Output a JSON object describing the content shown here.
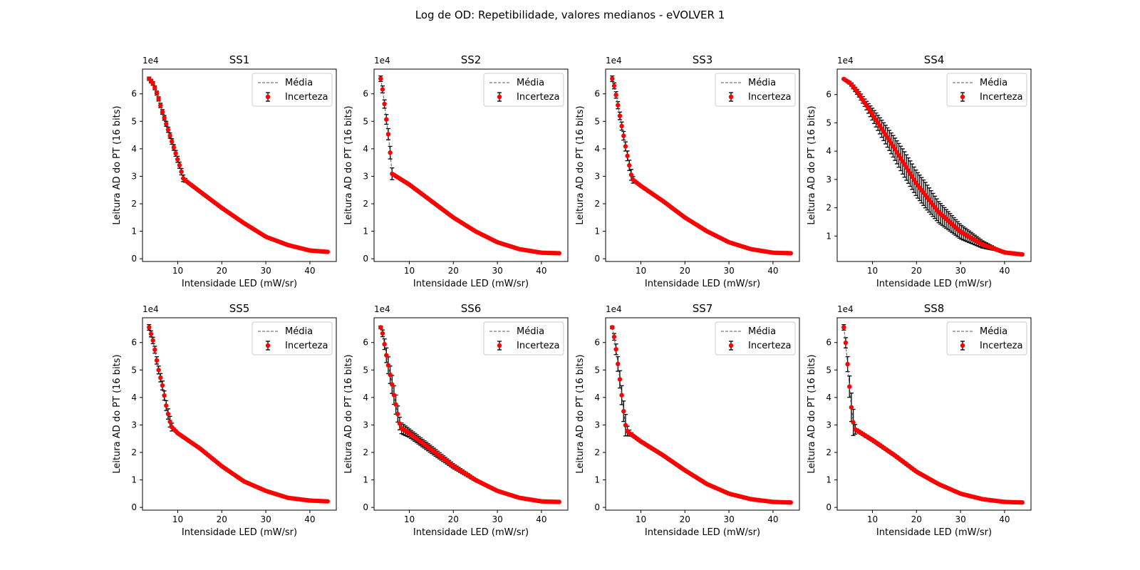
{
  "title": "Log de OD: Repetibilidade, valores medianos - eVOLVER 1",
  "chart_data": [
    {
      "type": "line",
      "title": "SS1",
      "xlabel": "Intensidade LED (mW/sr)",
      "ylabel": "Leitura AD do PT (16 bits)",
      "offset_text": "1e4",
      "xlim": [
        2,
        46
      ],
      "ylim": [
        -0.1,
        6.9
      ],
      "xticks": [
        10,
        20,
        30,
        40
      ],
      "yticks": [
        0,
        1,
        2,
        3,
        4,
        5,
        6
      ],
      "legend": {
        "position": "upper right",
        "entries": [
          "Média",
          "Incerteza"
        ]
      },
      "knots_x": [
        3.5,
        4.5,
        5.5,
        6.5,
        7.5,
        8.5,
        9.5,
        10.5,
        11.3,
        15,
        20,
        25,
        30,
        35,
        40,
        44
      ],
      "knots_y": [
        6.55,
        6.35,
        5.9,
        5.35,
        4.85,
        4.35,
        3.85,
        3.35,
        2.9,
        2.45,
        1.85,
        1.3,
        0.8,
        0.5,
        0.3,
        0.25
      ],
      "err_knots_x": [
        3.5,
        11.3,
        12,
        44
      ],
      "err_knots_y": [
        0.06,
        0.12,
        0.03,
        0.02
      ]
    },
    {
      "type": "line",
      "title": "SS2",
      "xlabel": "Intensidade LED (mW/sr)",
      "ylabel": "Leitura AD do PT (16 bits)",
      "offset_text": "1e4",
      "xlim": [
        2,
        46
      ],
      "ylim": [
        -0.1,
        6.9
      ],
      "xticks": [
        10,
        20,
        30,
        40
      ],
      "yticks": [
        0,
        1,
        2,
        3,
        4,
        5,
        6
      ],
      "legend": {
        "position": "upper right",
        "entries": [
          "Média",
          "Incerteza"
        ]
      },
      "knots_x": [
        3.5,
        4,
        4.5,
        5,
        5.5,
        6,
        8,
        10,
        15,
        20,
        25,
        30,
        35,
        40,
        44
      ],
      "knots_y": [
        6.55,
        6.1,
        5.45,
        4.8,
        4.2,
        3.1,
        2.9,
        2.7,
        2.1,
        1.5,
        1.0,
        0.6,
        0.35,
        0.22,
        0.2
      ],
      "err_knots_x": [
        3.5,
        6,
        6.5,
        44
      ],
      "err_knots_y": [
        0.1,
        0.25,
        0.03,
        0.02
      ]
    },
    {
      "type": "line",
      "title": "SS3",
      "xlabel": "Intensidade LED (mW/sr)",
      "ylabel": "Leitura AD do PT (16 bits)",
      "offset_text": "1e4",
      "xlim": [
        2,
        46
      ],
      "ylim": [
        -0.1,
        6.9
      ],
      "xticks": [
        10,
        20,
        30,
        40
      ],
      "yticks": [
        0,
        1,
        2,
        3,
        4,
        5,
        6
      ],
      "legend": {
        "position": "upper right",
        "entries": [
          "Média",
          "Incerteza"
        ]
      },
      "knots_x": [
        3.5,
        4,
        4.5,
        5,
        5.5,
        6,
        6.5,
        7,
        7.5,
        8,
        10,
        15,
        20,
        25,
        30,
        35,
        40,
        44
      ],
      "knots_y": [
        6.55,
        6.25,
        5.85,
        5.4,
        4.95,
        4.55,
        4.1,
        3.7,
        3.3,
        2.9,
        2.65,
        2.1,
        1.5,
        1.0,
        0.6,
        0.35,
        0.22,
        0.2
      ],
      "err_knots_x": [
        3.5,
        8,
        8.5,
        44
      ],
      "err_knots_y": [
        0.1,
        0.2,
        0.03,
        0.02
      ]
    },
    {
      "type": "line",
      "title": "SS4",
      "xlabel": "Intensidade LED (mW/sr)",
      "ylabel": "Leitura AD do PT (16 bits)",
      "offset_text": "1e4",
      "xlim": [
        2,
        46
      ],
      "ylim": [
        0.1,
        6.9
      ],
      "xticks": [
        10,
        20,
        30,
        40
      ],
      "yticks": [
        1,
        2,
        3,
        4,
        5,
        6
      ],
      "legend": {
        "position": "upper right",
        "entries": [
          "Média",
          "Incerteza"
        ]
      },
      "knots_x": [
        3.5,
        5,
        7,
        10,
        15,
        20,
        25,
        30,
        35,
        40,
        44
      ],
      "knots_y": [
        6.55,
        6.4,
        6.0,
        5.3,
        4.1,
        2.85,
        1.85,
        1.15,
        0.7,
        0.42,
        0.35
      ],
      "err_knots_x": [
        3.5,
        8,
        12,
        17,
        22,
        28,
        34,
        38,
        44
      ],
      "err_knots_y": [
        0.02,
        0.12,
        0.3,
        0.45,
        0.45,
        0.3,
        0.15,
        0.05,
        0.02
      ]
    },
    {
      "type": "line",
      "title": "SS5",
      "xlabel": "Intensidade LED (mW/sr)",
      "ylabel": "Leitura AD do PT (16 bits)",
      "offset_text": "1e4",
      "xlim": [
        2,
        46
      ],
      "ylim": [
        -0.1,
        6.9
      ],
      "xticks": [
        10,
        20,
        30,
        40
      ],
      "yticks": [
        0,
        1,
        2,
        3,
        4,
        5,
        6
      ],
      "legend": {
        "position": "upper right",
        "entries": [
          "Média",
          "Incerteza"
        ]
      },
      "knots_x": [
        3.5,
        4.5,
        5.5,
        6.5,
        7.5,
        8.5,
        10,
        15,
        20,
        25,
        30,
        35,
        40,
        44
      ],
      "knots_y": [
        6.55,
        6.0,
        5.1,
        4.45,
        3.6,
        2.95,
        2.7,
        2.15,
        1.5,
        0.95,
        0.6,
        0.35,
        0.25,
        0.22
      ],
      "err_knots_x": [
        3.5,
        8.5,
        9,
        44
      ],
      "err_knots_y": [
        0.1,
        0.2,
        0.03,
        0.02
      ]
    },
    {
      "type": "line",
      "title": "SS6",
      "xlabel": "Intensidade LED (mW/sr)",
      "ylabel": "Leitura AD do PT (16 bits)",
      "offset_text": "1e4",
      "xlim": [
        2,
        46
      ],
      "ylim": [
        -0.1,
        6.9
      ],
      "xticks": [
        10,
        20,
        30,
        40
      ],
      "yticks": [
        0,
        1,
        2,
        3,
        4,
        5,
        6
      ],
      "legend": {
        "position": "upper right",
        "entries": [
          "Média",
          "Incerteza"
        ]
      },
      "knots_x": [
        3.5,
        4,
        4.5,
        5,
        5.5,
        6,
        6.5,
        7,
        7.5,
        8,
        10,
        15,
        20,
        25,
        30,
        35,
        40,
        44
      ],
      "knots_y": [
        6.55,
        6.3,
        5.8,
        5.35,
        4.95,
        4.55,
        4.1,
        3.7,
        3.3,
        2.9,
        2.7,
        2.1,
        1.5,
        1.0,
        0.6,
        0.35,
        0.22,
        0.2
      ],
      "err_knots_x": [
        3.5,
        5,
        7,
        8,
        10,
        16,
        20,
        26,
        44
      ],
      "err_knots_y": [
        0.05,
        0.3,
        0.35,
        0.2,
        0.15,
        0.12,
        0.08,
        0.04,
        0.02
      ]
    },
    {
      "type": "line",
      "title": "SS7",
      "xlabel": "Intensidade LED (mW/sr)",
      "ylabel": "Leitura AD do PT (16 bits)",
      "offset_text": "1e4",
      "xlim": [
        2,
        46
      ],
      "ylim": [
        -0.1,
        6.9
      ],
      "xticks": [
        10,
        20,
        30,
        40
      ],
      "yticks": [
        0,
        1,
        2,
        3,
        4,
        5,
        6
      ],
      "legend": {
        "position": "upper right",
        "entries": [
          "Média",
          "Incerteza"
        ]
      },
      "knots_x": [
        3.5,
        4,
        4.5,
        5,
        5.5,
        6,
        6.5,
        7,
        10,
        15,
        20,
        25,
        30,
        35,
        40,
        44
      ],
      "knots_y": [
        6.55,
        6.15,
        5.6,
        4.95,
        4.3,
        3.6,
        3.0,
        2.75,
        2.4,
        1.9,
        1.35,
        0.85,
        0.5,
        0.3,
        0.2,
        0.18
      ],
      "err_knots_x": [
        3.5,
        5,
        6.5,
        7,
        8,
        44
      ],
      "err_knots_y": [
        0.05,
        0.3,
        0.4,
        0.15,
        0.04,
        0.02
      ]
    },
    {
      "type": "line",
      "title": "SS8",
      "xlabel": "Intensidade LED (mW/sr)",
      "ylabel": "Leitura AD do PT (16 bits)",
      "offset_text": "1e4",
      "xlim": [
        2,
        46
      ],
      "ylim": [
        -0.1,
        6.9
      ],
      "xticks": [
        10,
        20,
        30,
        40
      ],
      "yticks": [
        0,
        1,
        2,
        3,
        4,
        5,
        6
      ],
      "legend": {
        "position": "upper right",
        "entries": [
          "Média",
          "Incerteza"
        ]
      },
      "knots_x": [
        3.5,
        4,
        4.5,
        5,
        5.5,
        6,
        10,
        15,
        20,
        25,
        30,
        35,
        40,
        44
      ],
      "knots_y": [
        6.55,
        5.9,
        4.95,
        4.0,
        3.2,
        2.85,
        2.45,
        1.9,
        1.3,
        0.85,
        0.5,
        0.3,
        0.2,
        0.18
      ],
      "err_knots_x": [
        3.5,
        4.5,
        5.5,
        6,
        6.5,
        44
      ],
      "err_knots_y": [
        0.1,
        0.3,
        0.6,
        0.2,
        0.05,
        0.02
      ]
    }
  ]
}
